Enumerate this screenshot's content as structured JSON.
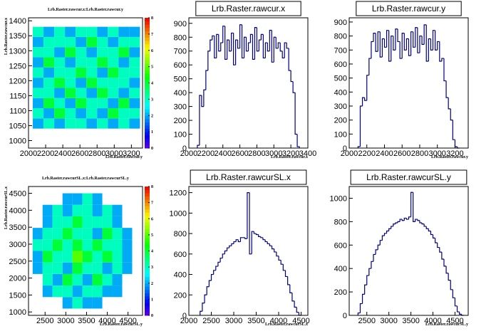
{
  "chart_data": [
    {
      "type": "heatmap",
      "title": "Lrb.Raster.rawcur.x:Lrb.Raster.rawcur.y",
      "x_label": "Lrb.Raster.rawcur.y",
      "y_label": "Lrb.Raster.rawcur.x",
      "xlim": [
        2000,
        3330
      ],
      "xticks": [
        2000,
        2200,
        2400,
        2600,
        2800,
        3000,
        3200
      ],
      "ylim": [
        975,
        1410
      ],
      "yticks": [
        1000,
        1050,
        1100,
        1150,
        1200,
        1250,
        1300,
        1350,
        1400
      ],
      "xbins": [
        2050,
        2175,
        2300,
        2425,
        2550,
        2675,
        2800,
        2925,
        3050,
        3175,
        3300
      ],
      "ybins": [
        1040,
        1074,
        1108,
        1142,
        1176,
        1210,
        1244,
        1278,
        1312,
        1346,
        1380
      ],
      "zlim": [
        0,
        8
      ],
      "zticks": [
        0,
        1,
        2,
        3,
        4,
        5,
        6,
        7,
        8
      ],
      "z": [
        [
          2,
          3,
          2,
          3,
          3,
          2,
          3,
          2,
          3,
          2
        ],
        [
          3,
          2,
          4,
          3,
          2,
          3,
          2,
          4,
          3,
          3
        ],
        [
          2,
          4,
          3,
          2,
          4,
          3,
          3,
          2,
          4,
          2
        ],
        [
          3,
          3,
          2,
          4,
          3,
          2,
          4,
          3,
          2,
          3
        ],
        [
          2,
          3,
          4,
          3,
          2,
          4,
          3,
          3,
          3,
          2
        ],
        [
          3,
          2,
          3,
          3,
          4,
          3,
          2,
          4,
          3,
          3
        ],
        [
          2,
          4,
          3,
          2,
          3,
          3,
          4,
          3,
          2,
          3
        ],
        [
          3,
          3,
          2,
          4,
          3,
          2,
          3,
          3,
          4,
          2
        ],
        [
          2,
          3,
          3,
          3,
          2,
          4,
          3,
          2,
          3,
          3
        ],
        [
          3,
          2,
          3,
          2,
          3,
          3,
          2,
          3,
          2,
          2
        ]
      ]
    },
    {
      "type": "histogram",
      "title": "Lrb.Raster.rawcur.x",
      "x_label": "Lrb.Raster.rawcur.x",
      "color": "#000080",
      "xlim": [
        2000,
        3400
      ],
      "xticks": [
        2000,
        2200,
        2400,
        2600,
        2800,
        3000,
        3200,
        3400
      ],
      "ylim": [
        0,
        940
      ],
      "yticks": [
        0,
        100,
        200,
        300,
        400,
        500,
        600,
        700,
        800,
        900
      ],
      "bins": [
        2100,
        2125,
        2150,
        2175,
        2200,
        2225,
        2250,
        2275,
        2300,
        2325,
        2350,
        2375,
        2400,
        2425,
        2450,
        2475,
        2500,
        2525,
        2550,
        2575,
        2600,
        2625,
        2650,
        2675,
        2700,
        2725,
        2750,
        2775,
        2800,
        2825,
        2850,
        2875,
        2900,
        2925,
        2950,
        2975,
        3000,
        3025,
        3050,
        3075,
        3100,
        3125,
        3150,
        3175,
        3200,
        3225,
        3250,
        3275,
        3300
      ],
      "values": [
        20,
        380,
        300,
        420,
        560,
        700,
        780,
        810,
        650,
        820,
        700,
        760,
        880,
        640,
        780,
        700,
        830,
        600,
        780,
        720,
        890,
        650,
        800,
        700,
        760,
        820,
        640,
        870,
        700,
        780,
        820,
        650,
        760,
        700,
        850,
        620,
        800,
        720,
        760,
        700,
        650,
        760,
        720,
        560,
        480,
        400,
        100,
        10
      ]
    },
    {
      "type": "histogram",
      "title": "Lrb.Raster.rawcur.y",
      "x_label": "Lrb.Raster.rawcur.y",
      "color": "#000080",
      "xlim": [
        2000,
        3350
      ],
      "xticks": [
        2000,
        2200,
        2400,
        2600,
        2800,
        3000,
        3200
      ],
      "ylim": [
        0,
        930
      ],
      "yticks": [
        0,
        100,
        200,
        300,
        400,
        500,
        600,
        700,
        800,
        900
      ],
      "bins": [
        2100,
        2125,
        2150,
        2175,
        2200,
        2225,
        2250,
        2275,
        2300,
        2325,
        2350,
        2375,
        2400,
        2425,
        2450,
        2475,
        2500,
        2525,
        2550,
        2575,
        2600,
        2625,
        2650,
        2675,
        2700,
        2725,
        2750,
        2775,
        2800,
        2825,
        2850,
        2875,
        2900,
        2925,
        2950,
        2975,
        3000,
        3025,
        3050,
        3075,
        3100,
        3125,
        3150,
        3175,
        3200,
        3225,
        3250
      ],
      "values": [
        10,
        300,
        360,
        340,
        520,
        640,
        760,
        820,
        690,
        830,
        650,
        780,
        720,
        840,
        620,
        800,
        700,
        850,
        760,
        640,
        820,
        700,
        780,
        660,
        830,
        720,
        860,
        680,
        800,
        740,
        880,
        620,
        780,
        700,
        840,
        700,
        760,
        620,
        640,
        480,
        360,
        280,
        200,
        60,
        10,
        0
      ]
    },
    {
      "type": "heatmap",
      "title": "Lrb.Raster.rawcurSL.x:Lrb.Raster.rawcurSL.y",
      "x_label": "Lrb.Raster.rawcurSL.y",
      "y_label": "Lrb.Raster.rawcurSL.x",
      "xlim": [
        2100,
        4850
      ],
      "xticks": [
        2500,
        3000,
        3500,
        4000,
        4500
      ],
      "ylim": [
        900,
        4700
      ],
      "yticks": [
        1000,
        1500,
        2000,
        2500,
        3000,
        3500,
        4000,
        4500
      ],
      "xbins": [
        2200,
        2440,
        2680,
        2920,
        3160,
        3400,
        3640,
        3880,
        4120,
        4360,
        4600
      ],
      "ybins": [
        1100,
        1440,
        1780,
        2120,
        2460,
        2800,
        3140,
        3480,
        3820,
        4160,
        4500
      ],
      "zlim": [
        0,
        8
      ],
      "zticks": [
        0,
        1,
        2,
        3,
        4,
        5,
        6,
        7,
        8
      ],
      "z": [
        [
          0,
          0,
          0,
          2,
          3,
          2,
          2,
          0,
          0,
          0
        ],
        [
          0,
          2,
          3,
          3,
          2,
          3,
          3,
          2,
          2,
          0
        ],
        [
          0,
          3,
          2,
          4,
          3,
          2,
          4,
          3,
          2,
          0
        ],
        [
          2,
          3,
          3,
          2,
          4,
          3,
          3,
          2,
          3,
          2
        ],
        [
          2,
          4,
          3,
          3,
          5,
          4,
          3,
          4,
          3,
          2
        ],
        [
          3,
          3,
          4,
          3,
          4,
          3,
          4,
          3,
          3,
          2
        ],
        [
          2,
          3,
          3,
          4,
          3,
          3,
          2,
          4,
          3,
          2
        ],
        [
          0,
          2,
          3,
          3,
          4,
          3,
          3,
          3,
          2,
          0
        ],
        [
          0,
          2,
          3,
          2,
          3,
          3,
          2,
          3,
          2,
          0
        ],
        [
          0,
          0,
          0,
          2,
          2,
          3,
          2,
          0,
          0,
          0
        ]
      ]
    },
    {
      "type": "histogram",
      "title": "Lrb.Raster.rawcurSL.x",
      "x_label": "Lrb.Raster.rawcurSL.x",
      "color": "#000080",
      "xlim": [
        2000,
        4650
      ],
      "xticks": [
        2000,
        2500,
        3000,
        3500,
        4000,
        4500
      ],
      "ylim": [
        0,
        1260
      ],
      "yticks": [
        0,
        200,
        400,
        600,
        800,
        1000,
        1200
      ],
      "bins": [
        2250,
        2300,
        2350,
        2400,
        2450,
        2500,
        2550,
        2600,
        2650,
        2700,
        2750,
        2800,
        2850,
        2900,
        2950,
        3000,
        3050,
        3100,
        3150,
        3200,
        3250,
        3300,
        3350,
        3400,
        3450,
        3500,
        3550,
        3600,
        3650,
        3700,
        3750,
        3800,
        3850,
        3900,
        3950,
        4000,
        4050,
        4100,
        4150,
        4200,
        4250,
        4300,
        4350,
        4400,
        4450,
        4500
      ],
      "values": [
        40,
        120,
        200,
        280,
        340,
        400,
        440,
        480,
        520,
        560,
        600,
        630,
        660,
        680,
        700,
        720,
        740,
        720,
        760,
        760,
        750,
        1200,
        600,
        820,
        800,
        790,
        770,
        760,
        740,
        720,
        700,
        680,
        650,
        620,
        580,
        540,
        500,
        440,
        380,
        300,
        220,
        140,
        80,
        30,
        0
      ]
    },
    {
      "type": "histogram",
      "title": "Lrb.Raster.rawcurSL.y",
      "x_label": "Lrb.Raster.rawcurSL.y",
      "color": "#000080",
      "xlim": [
        2100,
        4800
      ],
      "xticks": [
        2500,
        3000,
        3500,
        4000,
        4500
      ],
      "ylim": [
        0,
        1100
      ],
      "yticks": [
        0,
        200,
        400,
        600,
        800,
        1000
      ],
      "bins": [
        2300,
        2350,
        2400,
        2450,
        2500,
        2550,
        2600,
        2650,
        2700,
        2750,
        2800,
        2850,
        2900,
        2950,
        3000,
        3050,
        3100,
        3150,
        3200,
        3250,
        3300,
        3350,
        3400,
        3450,
        3500,
        3550,
        3600,
        3650,
        3700,
        3750,
        3800,
        3850,
        3900,
        3950,
        4000,
        4050,
        4100,
        4150,
        4200,
        4250,
        4300,
        4350,
        4400,
        4450,
        4500,
        4550,
        4600,
        4650,
        4700
      ],
      "values": [
        20,
        100,
        180,
        260,
        340,
        400,
        460,
        520,
        560,
        600,
        640,
        680,
        700,
        720,
        740,
        760,
        780,
        790,
        800,
        820,
        810,
        830,
        820,
        840,
        1050,
        800,
        820,
        810,
        790,
        780,
        760,
        740,
        720,
        690,
        660,
        620,
        580,
        540,
        480,
        420,
        360,
        300,
        220,
        150,
        80,
        30,
        10,
        0
      ]
    }
  ]
}
